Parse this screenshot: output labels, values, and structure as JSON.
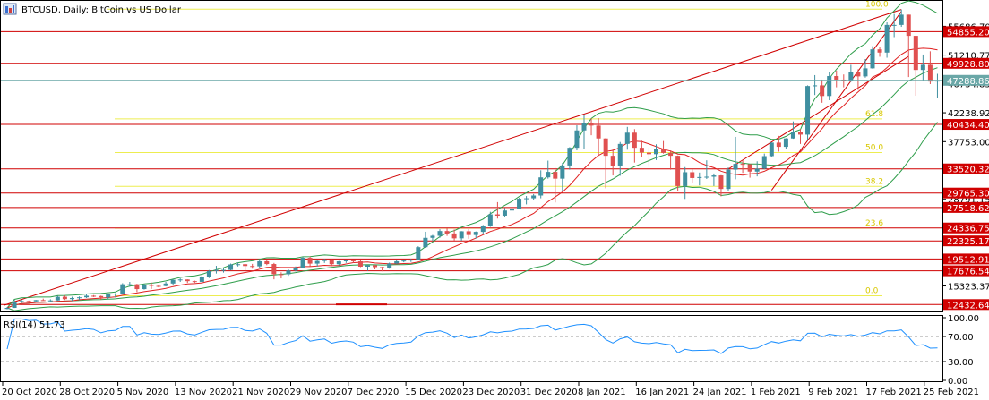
{
  "window": {
    "title": "BTCUSD, Daily:  BitCoin vs US Dollar",
    "icon_name": "chart-window-icon"
  },
  "colors": {
    "up": "#3f8fa0",
    "down": "#e05050",
    "level": "#d00000",
    "fib": "#eded50",
    "bollinger": "#2e9d4a",
    "ma_red": "#e02020",
    "rsi": "#1e90ff",
    "current": "#6aa7a7",
    "axis": "#000000"
  },
  "price_axis": {
    "ticks": [
      "55686.700",
      "51210.775",
      "46734.850",
      "42238.925",
      "37753.000",
      "33277.075",
      "28791.150",
      "15323.375"
    ],
    "tags": [
      {
        "label": "54855.207",
        "price": 54855.207,
        "type": "level"
      },
      {
        "label": "49928.803",
        "price": 49928.803,
        "type": "level"
      },
      {
        "label": "47288.865",
        "price": 47288.865,
        "type": "current"
      },
      {
        "label": "40434.404",
        "price": 40434.404,
        "type": "level"
      },
      {
        "label": "33520.324",
        "price": 33520.324,
        "type": "level"
      },
      {
        "label": "29765.308",
        "price": 29765.308,
        "type": "level"
      },
      {
        "label": "27518.623",
        "price": 27518.623,
        "type": "level"
      },
      {
        "label": "24336.755",
        "price": 24336.755,
        "type": "level"
      },
      {
        "label": "22325.173",
        "price": 22325.173,
        "type": "level"
      },
      {
        "label": "19512.915",
        "price": 19512.915,
        "type": "level"
      },
      {
        "label": "17676.546",
        "price": 17676.546,
        "type": "level"
      },
      {
        "label": "12432.649",
        "price": 12432.649,
        "type": "level"
      }
    ]
  },
  "fibonacci": [
    {
      "label": "100.0",
      "price": 58350
    },
    {
      "label": "61.8",
      "price": 41300
    },
    {
      "label": "50.0",
      "price": 36050
    },
    {
      "label": "38.2",
      "price": 30800
    },
    {
      "label": "23.6",
      "price": 24300
    },
    {
      "label": "0.0",
      "price": 13800
    }
  ],
  "rsi": {
    "label": "RSI(14) 51.73",
    "ticks": [
      "100.00",
      "70.00",
      "30.00",
      "0.00"
    ],
    "levels": [
      70,
      30
    ]
  },
  "date_axis": {
    "labels": [
      "20 Oct 2020",
      "28 Oct 2020",
      "5 Nov 2020",
      "13 Nov 2020",
      "21 Nov 2020",
      "29 Nov 2020",
      "7 Dec 2020",
      "15 Dec 2020",
      "23 Dec 2020",
      "31 Dec 2020",
      "8 Jan 2021",
      "16 Jan 2021",
      "24 Jan 2021",
      "1 Feb 2021",
      "9 Feb 2021",
      "17 Feb 2021",
      "25 Feb 2021"
    ]
  },
  "chart_data": {
    "type": "candlestick",
    "title": "BTCUSD, Daily:  BitCoin vs US Dollar",
    "x_start": "2020-10-20",
    "x_end": "2021-02-26",
    "ylim": [
      11500,
      59500
    ],
    "candles": [
      {
        "date": "2020-10-20",
        "o": 11750,
        "h": 12050,
        "l": 11700,
        "c": 11920
      },
      {
        "date": "2020-10-21",
        "o": 11920,
        "h": 13200,
        "l": 11900,
        "c": 12800
      },
      {
        "date": "2020-10-22",
        "o": 12800,
        "h": 13200,
        "l": 12700,
        "c": 12980
      },
      {
        "date": "2020-10-23",
        "o": 12980,
        "h": 13050,
        "l": 12850,
        "c": 12930
      },
      {
        "date": "2020-10-24",
        "o": 12930,
        "h": 13150,
        "l": 12900,
        "c": 13120
      },
      {
        "date": "2020-10-25",
        "o": 13120,
        "h": 13350,
        "l": 13050,
        "c": 13030
      },
      {
        "date": "2020-10-26",
        "o": 13030,
        "h": 13250,
        "l": 12800,
        "c": 13070
      },
      {
        "date": "2020-10-27",
        "o": 13070,
        "h": 13800,
        "l": 13050,
        "c": 13650
      },
      {
        "date": "2020-10-28",
        "o": 13650,
        "h": 13850,
        "l": 13150,
        "c": 13280
      },
      {
        "date": "2020-10-29",
        "o": 13280,
        "h": 13650,
        "l": 12990,
        "c": 13450
      },
      {
        "date": "2020-10-30",
        "o": 13450,
        "h": 13700,
        "l": 13150,
        "c": 13560
      },
      {
        "date": "2020-10-31",
        "o": 13560,
        "h": 14100,
        "l": 13450,
        "c": 13800
      },
      {
        "date": "2020-11-01",
        "o": 13800,
        "h": 13900,
        "l": 13600,
        "c": 13760
      },
      {
        "date": "2020-11-02",
        "o": 13760,
        "h": 13820,
        "l": 13200,
        "c": 13550
      },
      {
        "date": "2020-11-03",
        "o": 13550,
        "h": 14050,
        "l": 13300,
        "c": 14020
      },
      {
        "date": "2020-11-04",
        "o": 14020,
        "h": 14200,
        "l": 13550,
        "c": 14140
      },
      {
        "date": "2020-11-05",
        "o": 14140,
        "h": 15750,
        "l": 14100,
        "c": 15580
      },
      {
        "date": "2020-11-06",
        "o": 15580,
        "h": 15950,
        "l": 15200,
        "c": 15580
      },
      {
        "date": "2020-11-07",
        "o": 15580,
        "h": 15650,
        "l": 14350,
        "c": 14830
      },
      {
        "date": "2020-11-08",
        "o": 14830,
        "h": 15650,
        "l": 14750,
        "c": 15480
      },
      {
        "date": "2020-11-09",
        "o": 15480,
        "h": 15850,
        "l": 14850,
        "c": 15330
      },
      {
        "date": "2020-11-10",
        "o": 15330,
        "h": 15450,
        "l": 15100,
        "c": 15310
      },
      {
        "date": "2020-11-11",
        "o": 15310,
        "h": 15950,
        "l": 15250,
        "c": 15700
      },
      {
        "date": "2020-11-12",
        "o": 15700,
        "h": 16350,
        "l": 15450,
        "c": 16290
      },
      {
        "date": "2020-11-13",
        "o": 16290,
        "h": 16500,
        "l": 15950,
        "c": 16330
      },
      {
        "date": "2020-11-14",
        "o": 16330,
        "h": 16350,
        "l": 15800,
        "c": 16070
      },
      {
        "date": "2020-11-15",
        "o": 16070,
        "h": 16150,
        "l": 15800,
        "c": 15960
      },
      {
        "date": "2020-11-16",
        "o": 15960,
        "h": 16900,
        "l": 15900,
        "c": 16720
      },
      {
        "date": "2020-11-17",
        "o": 16720,
        "h": 17800,
        "l": 16550,
        "c": 17650
      },
      {
        "date": "2020-11-18",
        "o": 17650,
        "h": 18450,
        "l": 17250,
        "c": 17800
      },
      {
        "date": "2020-11-19",
        "o": 17800,
        "h": 18150,
        "l": 17400,
        "c": 17820
      },
      {
        "date": "2020-11-20",
        "o": 17820,
        "h": 18800,
        "l": 17750,
        "c": 18660
      },
      {
        "date": "2020-11-21",
        "o": 18660,
        "h": 18950,
        "l": 18350,
        "c": 18700
      },
      {
        "date": "2020-11-22",
        "o": 18700,
        "h": 18750,
        "l": 17650,
        "c": 18420
      },
      {
        "date": "2020-11-23",
        "o": 18420,
        "h": 18750,
        "l": 18000,
        "c": 18370
      },
      {
        "date": "2020-11-24",
        "o": 18370,
        "h": 19400,
        "l": 18050,
        "c": 19160
      },
      {
        "date": "2020-11-25",
        "o": 19160,
        "h": 19450,
        "l": 18550,
        "c": 18730
      },
      {
        "date": "2020-11-26",
        "o": 18730,
        "h": 18900,
        "l": 16350,
        "c": 17150
      },
      {
        "date": "2020-11-27",
        "o": 17150,
        "h": 17450,
        "l": 16500,
        "c": 17140
      },
      {
        "date": "2020-11-28",
        "o": 17140,
        "h": 17900,
        "l": 16900,
        "c": 17720
      },
      {
        "date": "2020-11-29",
        "o": 17720,
        "h": 18350,
        "l": 17550,
        "c": 18180
      },
      {
        "date": "2020-11-30",
        "o": 18180,
        "h": 19850,
        "l": 18150,
        "c": 19700
      },
      {
        "date": "2020-12-01",
        "o": 19700,
        "h": 19900,
        "l": 18350,
        "c": 18790
      },
      {
        "date": "2020-12-02",
        "o": 18790,
        "h": 19350,
        "l": 18350,
        "c": 19210
      },
      {
        "date": "2020-12-03",
        "o": 19210,
        "h": 19550,
        "l": 18900,
        "c": 19450
      },
      {
        "date": "2020-12-04",
        "o": 19450,
        "h": 19500,
        "l": 18550,
        "c": 18700
      },
      {
        "date": "2020-12-05",
        "o": 18700,
        "h": 19200,
        "l": 18550,
        "c": 19150
      },
      {
        "date": "2020-12-06",
        "o": 19150,
        "h": 19400,
        "l": 18900,
        "c": 19360
      },
      {
        "date": "2020-12-07",
        "o": 19360,
        "h": 19400,
        "l": 18900,
        "c": 19160
      },
      {
        "date": "2020-12-08",
        "o": 19160,
        "h": 19300,
        "l": 18250,
        "c": 18320
      },
      {
        "date": "2020-12-09",
        "o": 18320,
        "h": 18600,
        "l": 17650,
        "c": 18550
      },
      {
        "date": "2020-12-10",
        "o": 18550,
        "h": 18550,
        "l": 17900,
        "c": 18250
      },
      {
        "date": "2020-12-11",
        "o": 18250,
        "h": 18300,
        "l": 17600,
        "c": 18040
      },
      {
        "date": "2020-12-12",
        "o": 18040,
        "h": 18950,
        "l": 18000,
        "c": 18800
      },
      {
        "date": "2020-12-13",
        "o": 18800,
        "h": 19400,
        "l": 18750,
        "c": 19160
      },
      {
        "date": "2020-12-14",
        "o": 19160,
        "h": 19300,
        "l": 19000,
        "c": 19270
      },
      {
        "date": "2020-12-15",
        "o": 19270,
        "h": 19550,
        "l": 19050,
        "c": 19440
      },
      {
        "date": "2020-12-16",
        "o": 19440,
        "h": 21500,
        "l": 19300,
        "c": 21350
      },
      {
        "date": "2020-12-17",
        "o": 21350,
        "h": 23750,
        "l": 21250,
        "c": 22800
      },
      {
        "date": "2020-12-18",
        "o": 22800,
        "h": 23250,
        "l": 22350,
        "c": 23120
      },
      {
        "date": "2020-12-19",
        "o": 23120,
        "h": 24150,
        "l": 22800,
        "c": 23860
      },
      {
        "date": "2020-12-20",
        "o": 23860,
        "h": 24250,
        "l": 23100,
        "c": 23480
      },
      {
        "date": "2020-12-21",
        "o": 23480,
        "h": 24100,
        "l": 22350,
        "c": 22720
      },
      {
        "date": "2020-12-22",
        "o": 22720,
        "h": 23850,
        "l": 22350,
        "c": 23820
      },
      {
        "date": "2020-12-23",
        "o": 23820,
        "h": 24150,
        "l": 22650,
        "c": 23240
      },
      {
        "date": "2020-12-24",
        "o": 23240,
        "h": 23800,
        "l": 22700,
        "c": 23730
      },
      {
        "date": "2020-12-25",
        "o": 23730,
        "h": 24800,
        "l": 23450,
        "c": 24700
      },
      {
        "date": "2020-12-26",
        "o": 24700,
        "h": 26850,
        "l": 24500,
        "c": 26450
      },
      {
        "date": "2020-12-27",
        "o": 26450,
        "h": 28350,
        "l": 25800,
        "c": 26250
      },
      {
        "date": "2020-12-28",
        "o": 26250,
        "h": 27450,
        "l": 26100,
        "c": 27050
      },
      {
        "date": "2020-12-29",
        "o": 27050,
        "h": 27350,
        "l": 25850,
        "c": 27350
      },
      {
        "date": "2020-12-30",
        "o": 27350,
        "h": 29000,
        "l": 27300,
        "c": 28880
      },
      {
        "date": "2020-12-31",
        "o": 28880,
        "h": 29300,
        "l": 28000,
        "c": 28950
      },
      {
        "date": "2021-01-01",
        "o": 28950,
        "h": 29600,
        "l": 28750,
        "c": 29380
      },
      {
        "date": "2021-01-02",
        "o": 29380,
        "h": 33300,
        "l": 28950,
        "c": 32200
      },
      {
        "date": "2021-01-03",
        "o": 32200,
        "h": 34800,
        "l": 32000,
        "c": 33050
      },
      {
        "date": "2021-01-04",
        "o": 33050,
        "h": 33650,
        "l": 28300,
        "c": 32000
      },
      {
        "date": "2021-01-05",
        "o": 32000,
        "h": 34450,
        "l": 30000,
        "c": 34050
      },
      {
        "date": "2021-01-06",
        "o": 34050,
        "h": 36900,
        "l": 33400,
        "c": 36800
      },
      {
        "date": "2021-01-07",
        "o": 36800,
        "h": 40300,
        "l": 36400,
        "c": 39500
      },
      {
        "date": "2021-01-08",
        "o": 39500,
        "h": 41950,
        "l": 36550,
        "c": 40650
      },
      {
        "date": "2021-01-09",
        "o": 40650,
        "h": 41350,
        "l": 38750,
        "c": 40250
      },
      {
        "date": "2021-01-10",
        "o": 40250,
        "h": 41400,
        "l": 35550,
        "c": 38250
      },
      {
        "date": "2021-01-11",
        "o": 38250,
        "h": 38300,
        "l": 30500,
        "c": 35550
      },
      {
        "date": "2021-01-12",
        "o": 35550,
        "h": 36600,
        "l": 32500,
        "c": 34000
      },
      {
        "date": "2021-01-13",
        "o": 34000,
        "h": 37700,
        "l": 32450,
        "c": 37400
      },
      {
        "date": "2021-01-14",
        "o": 37400,
        "h": 40050,
        "l": 36500,
        "c": 39150
      },
      {
        "date": "2021-01-15",
        "o": 39150,
        "h": 39700,
        "l": 34500,
        "c": 36800
      },
      {
        "date": "2021-01-16",
        "o": 36800,
        "h": 37900,
        "l": 35400,
        "c": 36050
      },
      {
        "date": "2021-01-17",
        "o": 36050,
        "h": 36850,
        "l": 33850,
        "c": 35800
      },
      {
        "date": "2021-01-18",
        "o": 35800,
        "h": 37350,
        "l": 34900,
        "c": 36650
      },
      {
        "date": "2021-01-19",
        "o": 36650,
        "h": 37850,
        "l": 35900,
        "c": 36000
      },
      {
        "date": "2021-01-20",
        "o": 36000,
        "h": 36400,
        "l": 33400,
        "c": 35550
      },
      {
        "date": "2021-01-21",
        "o": 35550,
        "h": 35600,
        "l": 30100,
        "c": 30850
      },
      {
        "date": "2021-01-22",
        "o": 30850,
        "h": 33800,
        "l": 28850,
        "c": 33000
      },
      {
        "date": "2021-01-23",
        "o": 33000,
        "h": 33450,
        "l": 31400,
        "c": 32100
      },
      {
        "date": "2021-01-24",
        "o": 32100,
        "h": 32950,
        "l": 30950,
        "c": 32250
      },
      {
        "date": "2021-01-25",
        "o": 32250,
        "h": 34850,
        "l": 31950,
        "c": 32300
      },
      {
        "date": "2021-01-26",
        "o": 32300,
        "h": 32800,
        "l": 30850,
        "c": 32500
      },
      {
        "date": "2021-01-27",
        "o": 32500,
        "h": 32550,
        "l": 29250,
        "c": 30400
      },
      {
        "date": "2021-01-28",
        "o": 30400,
        "h": 33750,
        "l": 30000,
        "c": 33400
      },
      {
        "date": "2021-01-29",
        "o": 33400,
        "h": 38500,
        "l": 31900,
        "c": 34300
      },
      {
        "date": "2021-01-30",
        "o": 34300,
        "h": 34900,
        "l": 32900,
        "c": 34250
      },
      {
        "date": "2021-01-31",
        "o": 34250,
        "h": 34250,
        "l": 32150,
        "c": 33100
      },
      {
        "date": "2021-02-01",
        "o": 33100,
        "h": 34700,
        "l": 32350,
        "c": 33550
      },
      {
        "date": "2021-02-02",
        "o": 33550,
        "h": 35900,
        "l": 33450,
        "c": 35500
      },
      {
        "date": "2021-02-03",
        "o": 35500,
        "h": 37650,
        "l": 35400,
        "c": 37600
      },
      {
        "date": "2021-02-04",
        "o": 37600,
        "h": 38650,
        "l": 36200,
        "c": 36950
      },
      {
        "date": "2021-02-05",
        "o": 36950,
        "h": 38300,
        "l": 36650,
        "c": 38250
      },
      {
        "date": "2021-02-06",
        "o": 38250,
        "h": 40900,
        "l": 38200,
        "c": 39250
      },
      {
        "date": "2021-02-07",
        "o": 39250,
        "h": 39700,
        "l": 37400,
        "c": 38850
      },
      {
        "date": "2021-02-08",
        "o": 38850,
        "h": 46500,
        "l": 37950,
        "c": 46400
      },
      {
        "date": "2021-02-09",
        "o": 46400,
        "h": 48100,
        "l": 45000,
        "c": 46500
      },
      {
        "date": "2021-02-10",
        "o": 46500,
        "h": 47400,
        "l": 43800,
        "c": 44850
      },
      {
        "date": "2021-02-11",
        "o": 44850,
        "h": 48600,
        "l": 44200,
        "c": 47950
      },
      {
        "date": "2021-02-12",
        "o": 47950,
        "h": 48800,
        "l": 46200,
        "c": 47400
      },
      {
        "date": "2021-02-13",
        "o": 47400,
        "h": 48200,
        "l": 46200,
        "c": 47150
      },
      {
        "date": "2021-02-14",
        "o": 47150,
        "h": 49700,
        "l": 47050,
        "c": 48600
      },
      {
        "date": "2021-02-15",
        "o": 48600,
        "h": 49000,
        "l": 45800,
        "c": 47900
      },
      {
        "date": "2021-02-16",
        "o": 47900,
        "h": 50600,
        "l": 47700,
        "c": 49150
      },
      {
        "date": "2021-02-17",
        "o": 49150,
        "h": 52600,
        "l": 49100,
        "c": 52100
      },
      {
        "date": "2021-02-18",
        "o": 52100,
        "h": 52500,
        "l": 50950,
        "c": 51600
      },
      {
        "date": "2021-02-19",
        "o": 51600,
        "h": 56300,
        "l": 50800,
        "c": 55900
      },
      {
        "date": "2021-02-20",
        "o": 55900,
        "h": 57600,
        "l": 54000,
        "c": 55900
      },
      {
        "date": "2021-02-21",
        "o": 55900,
        "h": 58300,
        "l": 55600,
        "c": 57500
      },
      {
        "date": "2021-02-22",
        "o": 57500,
        "h": 57500,
        "l": 47800,
        "c": 54200
      },
      {
        "date": "2021-02-23",
        "o": 54200,
        "h": 54200,
        "l": 44900,
        "c": 48900
      },
      {
        "date": "2021-02-24",
        "o": 48900,
        "h": 51300,
        "l": 47200,
        "c": 49700
      },
      {
        "date": "2021-02-25",
        "o": 49700,
        "h": 51800,
        "l": 46700,
        "c": 47100
      },
      {
        "date": "2021-02-26",
        "o": 47100,
        "h": 48300,
        "l": 44500,
        "c": 47288.865
      }
    ]
  }
}
